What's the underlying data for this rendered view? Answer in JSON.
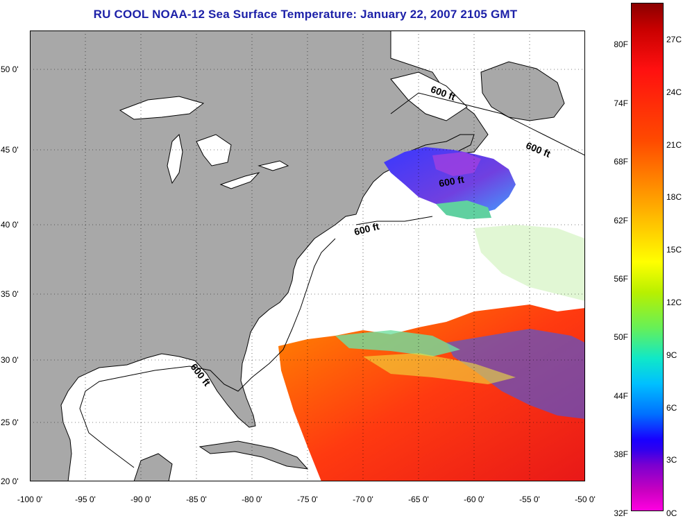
{
  "title": "RU COOL  NOAA-12  Sea Surface Temperature:  January 22, 2007 2105 GMT",
  "map": {
    "lon_range": [
      -100,
      -50
    ],
    "lat_range": [
      20,
      52.5
    ],
    "lat_labels": [
      "50 0'",
      "45 0'",
      "40 0'",
      "35 0'",
      "30 0'",
      "25 0'",
      "20 0'"
    ],
    "lon_labels": [
      "-100 0'",
      "-95 0'",
      "-90 0'",
      "-85 0'",
      "-80 0'",
      "-75 0'",
      "-70 0'",
      "-65 0'",
      "-60 0'",
      "-55 0'",
      "-50 0'"
    ],
    "isobath_label": "600 ft",
    "colors": {
      "land": "#a8a8a8",
      "water_no_data": "#ffffff",
      "grid": "#000000"
    }
  },
  "colorbar": {
    "fahrenheit_labels": [
      "80F",
      "74F",
      "68F",
      "62F",
      "56F",
      "50F",
      "44F",
      "38F",
      "32F"
    ],
    "celsius_labels": [
      "27C",
      "24C",
      "21C",
      "18C",
      "15C",
      "12C",
      "9C",
      "6C",
      "3C",
      "0C"
    ]
  }
}
